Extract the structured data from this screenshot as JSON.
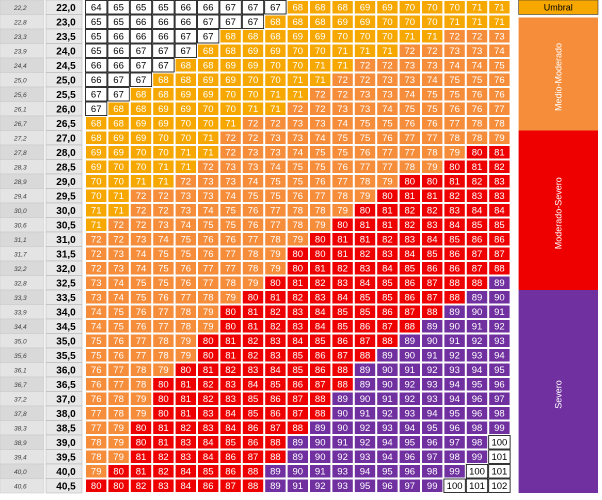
{
  "chart_data": {
    "type": "heatmap",
    "bins": [
      {
        "min": 0,
        "max": 67,
        "color": "#ffffff"
      },
      {
        "min": 68,
        "max": 71,
        "color": "#f6a800"
      },
      {
        "min": 72,
        "max": 79,
        "color": "#f68d3b"
      },
      {
        "min": 80,
        "max": 88,
        "color": "#ee0000"
      },
      {
        "min": 89,
        "max": 99,
        "color": "#7030a0"
      },
      {
        "min": 100,
        "max": 200,
        "color": "#ffffff"
      }
    ],
    "rows": [
      {
        "left": "22,2",
        "right": "22,0",
        "values": [
          64,
          65,
          65,
          65,
          66,
          66,
          67,
          67,
          67,
          68,
          68,
          68,
          69,
          69,
          70,
          70,
          70,
          71,
          71
        ]
      },
      {
        "left": "22,8",
        "right": "23,0",
        "values": [
          65,
          65,
          66,
          66,
          66,
          67,
          67,
          67,
          68,
          68,
          68,
          69,
          69,
          70,
          70,
          70,
          71,
          71,
          71
        ]
      },
      {
        "left": "23,3",
        "right": "23,5",
        "values": [
          65,
          66,
          66,
          66,
          67,
          67,
          68,
          68,
          68,
          69,
          69,
          70,
          70,
          70,
          71,
          71,
          72,
          72,
          73
        ]
      },
      {
        "left": "23,9",
        "right": "24,0",
        "values": [
          65,
          66,
          67,
          67,
          67,
          68,
          68,
          69,
          69,
          70,
          70,
          71,
          71,
          71,
          72,
          72,
          73,
          73,
          74
        ]
      },
      {
        "left": "24,4",
        "right": "24,5",
        "values": [
          66,
          66,
          67,
          67,
          68,
          68,
          69,
          69,
          70,
          70,
          71,
          71,
          72,
          72,
          73,
          73,
          74,
          74,
          75
        ]
      },
      {
        "left": "25,0",
        "right": "25,0",
        "values": [
          66,
          67,
          67,
          68,
          68,
          69,
          69,
          70,
          70,
          71,
          71,
          72,
          72,
          73,
          73,
          74,
          75,
          75,
          76
        ]
      },
      {
        "left": "25,6",
        "right": "25,5",
        "values": [
          67,
          67,
          68,
          68,
          69,
          69,
          70,
          70,
          71,
          71,
          72,
          72,
          73,
          73,
          74,
          75,
          75,
          76,
          76
        ]
      },
      {
        "left": "26,1",
        "right": "26,0",
        "values": [
          67,
          68,
          68,
          69,
          69,
          70,
          70,
          71,
          71,
          72,
          72,
          73,
          73,
          74,
          75,
          75,
          76,
          76,
          77
        ]
      },
      {
        "left": "26,7",
        "right": "26,5",
        "values": [
          68,
          68,
          69,
          69,
          70,
          70,
          71,
          72,
          72,
          73,
          73,
          74,
          75,
          75,
          76,
          76,
          77,
          78,
          78
        ]
      },
      {
        "left": "27,2",
        "right": "27,0",
        "values": [
          68,
          69,
          69,
          70,
          70,
          71,
          72,
          72,
          73,
          73,
          74,
          75,
          75,
          76,
          77,
          77,
          78,
          78,
          79
        ]
      },
      {
        "left": "27,8",
        "right": "28,0",
        "values": [
          69,
          69,
          70,
          70,
          71,
          71,
          72,
          73,
          73,
          74,
          75,
          75,
          76,
          77,
          77,
          78,
          79,
          80,
          81
        ]
      },
      {
        "left": "28,3",
        "right": "28,5",
        "values": [
          69,
          70,
          70,
          71,
          71,
          72,
          73,
          73,
          74,
          75,
          75,
          76,
          77,
          77,
          78,
          79,
          80,
          81,
          82
        ]
      },
      {
        "left": "28,9",
        "right": "29,0",
        "values": [
          70,
          70,
          71,
          71,
          72,
          73,
          73,
          74,
          75,
          75,
          76,
          77,
          78,
          79,
          80,
          80,
          81,
          82,
          83
        ]
      },
      {
        "left": "29,4",
        "right": "29,5",
        "values": [
          70,
          71,
          72,
          72,
          73,
          73,
          74,
          75,
          75,
          76,
          77,
          78,
          79,
          80,
          81,
          81,
          82,
          83,
          83
        ]
      },
      {
        "left": "30,0",
        "right": "30,0",
        "values": [
          71,
          71,
          72,
          72,
          73,
          74,
          75,
          76,
          77,
          78,
          78,
          79,
          80,
          81,
          82,
          82,
          83,
          84,
          84
        ]
      },
      {
        "left": "30,6",
        "right": "30,5",
        "values": [
          71,
          72,
          72,
          73,
          74,
          75,
          75,
          76,
          77,
          78,
          79,
          80,
          81,
          81,
          82,
          83,
          84,
          85,
          85
        ]
      },
      {
        "left": "31,1",
        "right": "31,0",
        "values": [
          72,
          72,
          73,
          74,
          75,
          76,
          76,
          77,
          78,
          79,
          80,
          81,
          81,
          82,
          83,
          84,
          85,
          86,
          86
        ]
      },
      {
        "left": "31,7",
        "right": "31,5",
        "values": [
          72,
          73,
          74,
          75,
          75,
          76,
          77,
          78,
          79,
          80,
          80,
          81,
          82,
          83,
          84,
          85,
          86,
          87,
          87
        ]
      },
      {
        "left": "32,2",
        "right": "32,0",
        "values": [
          72,
          73,
          74,
          75,
          76,
          77,
          77,
          78,
          79,
          80,
          81,
          82,
          83,
          84,
          85,
          86,
          86,
          87,
          88
        ]
      },
      {
        "left": "32,8",
        "right": "32,5",
        "values": [
          73,
          74,
          75,
          75,
          76,
          77,
          78,
          79,
          80,
          81,
          82,
          83,
          84,
          85,
          86,
          87,
          88,
          88,
          89
        ]
      },
      {
        "left": "33,3",
        "right": "33,5",
        "values": [
          73,
          74,
          75,
          76,
          77,
          78,
          79,
          80,
          81,
          82,
          83,
          84,
          85,
          85,
          86,
          87,
          88,
          89,
          90
        ]
      },
      {
        "left": "33,9",
        "right": "34,0",
        "values": [
          74,
          75,
          76,
          77,
          78,
          79,
          80,
          81,
          82,
          83,
          84,
          85,
          85,
          86,
          87,
          88,
          89,
          90,
          91
        ]
      },
      {
        "left": "34,4",
        "right": "34,5",
        "values": [
          74,
          75,
          76,
          77,
          78,
          79,
          80,
          81,
          82,
          83,
          84,
          85,
          86,
          87,
          88,
          89,
          90,
          91,
          92
        ]
      },
      {
        "left": "35,0",
        "right": "35,0",
        "values": [
          75,
          76,
          77,
          78,
          79,
          80,
          81,
          82,
          83,
          84,
          85,
          86,
          87,
          88,
          89,
          90,
          91,
          92,
          93
        ]
      },
      {
        "left": "35,6",
        "right": "35,5",
        "values": [
          75,
          76,
          77,
          78,
          79,
          80,
          81,
          82,
          83,
          85,
          86,
          87,
          88,
          89,
          90,
          91,
          92,
          93,
          94
        ]
      },
      {
        "left": "36,1",
        "right": "36,0",
        "values": [
          76,
          77,
          78,
          79,
          80,
          81,
          82,
          83,
          84,
          85,
          86,
          88,
          89,
          90,
          91,
          92,
          93,
          94,
          95
        ]
      },
      {
        "left": "36,7",
        "right": "36,5",
        "values": [
          76,
          77,
          78,
          80,
          81,
          82,
          83,
          84,
          85,
          86,
          87,
          88,
          89,
          90,
          92,
          93,
          94,
          95,
          96
        ]
      },
      {
        "left": "37,2",
        "right": "37,0",
        "values": [
          76,
          78,
          79,
          80,
          81,
          82,
          83,
          85,
          86,
          87,
          88,
          89,
          90,
          91,
          92,
          93,
          94,
          96,
          97
        ]
      },
      {
        "left": "37,8",
        "right": "38,0",
        "values": [
          77,
          78,
          79,
          80,
          81,
          83,
          84,
          85,
          86,
          87,
          88,
          90,
          91,
          92,
          93,
          94,
          95,
          96,
          98
        ]
      },
      {
        "left": "38,3",
        "right": "38,5",
        "values": [
          77,
          79,
          80,
          81,
          82,
          83,
          84,
          86,
          87,
          88,
          89,
          90,
          92,
          93,
          94,
          95,
          96,
          98,
          99
        ]
      },
      {
        "left": "38,9",
        "right": "39,0",
        "values": [
          78,
          79,
          80,
          81,
          83,
          84,
          85,
          86,
          88,
          89,
          90,
          91,
          92,
          94,
          95,
          96,
          97,
          98,
          100
        ]
      },
      {
        "left": "39,4",
        "right": "39,5",
        "values": [
          78,
          79,
          81,
          82,
          83,
          84,
          86,
          87,
          88,
          89,
          90,
          92,
          93,
          94,
          96,
          97,
          98,
          99,
          101
        ]
      },
      {
        "left": "40,0",
        "right": "40,0",
        "values": [
          79,
          80,
          81,
          82,
          84,
          85,
          86,
          88,
          89,
          90,
          91,
          93,
          94,
          95,
          96,
          98,
          99,
          100,
          101
        ]
      },
      {
        "left": "40,6",
        "right": "40,5",
        "values": [
          80,
          80,
          82,
          83,
          84,
          86,
          87,
          88,
          89,
          91,
          92,
          93,
          95,
          96,
          97,
          99,
          100,
          101,
          102
        ]
      }
    ],
    "legend": [
      {
        "label": "Umbral",
        "color": "#f6a800"
      },
      {
        "label": "Medio-Moderado",
        "color": "#f68d3b"
      },
      {
        "label": "Moderado-Severo",
        "color": "#ee0000"
      },
      {
        "label": "Severo",
        "color": "#7030a0"
      }
    ]
  }
}
